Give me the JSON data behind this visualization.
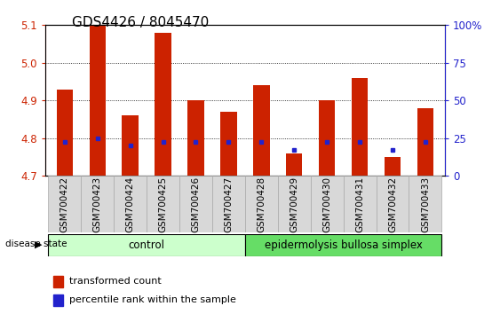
{
  "title": "GDS4426 / 8045470",
  "samples": [
    "GSM700422",
    "GSM700423",
    "GSM700424",
    "GSM700425",
    "GSM700426",
    "GSM700427",
    "GSM700428",
    "GSM700429",
    "GSM700430",
    "GSM700431",
    "GSM700432",
    "GSM700433"
  ],
  "red_values": [
    4.93,
    5.1,
    4.86,
    5.08,
    4.9,
    4.87,
    4.94,
    4.76,
    4.9,
    4.96,
    4.75,
    4.88
  ],
  "blue_values": [
    4.79,
    4.8,
    4.78,
    4.79,
    4.79,
    4.79,
    4.79,
    4.77,
    4.79,
    4.79,
    4.77,
    4.79
  ],
  "ymin": 4.7,
  "ymax": 5.1,
  "yticks_left": [
    4.7,
    4.8,
    4.9,
    5.0,
    5.1
  ],
  "yticks_right": [
    0,
    25,
    50,
    75,
    100
  ],
  "yticks_right_labels": [
    "0",
    "25",
    "50",
    "75",
    "100%"
  ],
  "grid_values": [
    4.8,
    4.9,
    5.0
  ],
  "bar_color": "#cc2200",
  "blue_color": "#2222cc",
  "bar_width": 0.5,
  "group1_label": "control",
  "group2_label": "epidermolysis bullosa simplex",
  "group1_indices": [
    0,
    1,
    2,
    3,
    4,
    5
  ],
  "group2_indices": [
    6,
    7,
    8,
    9,
    10,
    11
  ],
  "group1_color": "#ccffcc",
  "group2_color": "#66dd66",
  "disease_state_label": "disease state",
  "legend_red_label": "transformed count",
  "legend_blue_label": "percentile rank within the sample",
  "tick_label_color_left": "#cc2200",
  "tick_label_color_right": "#2222cc",
  "title_fontsize": 11,
  "axis_tick_fontsize": 8.5,
  "group_label_fontsize": 8.5,
  "legend_fontsize": 8,
  "sample_fontsize": 7.5
}
